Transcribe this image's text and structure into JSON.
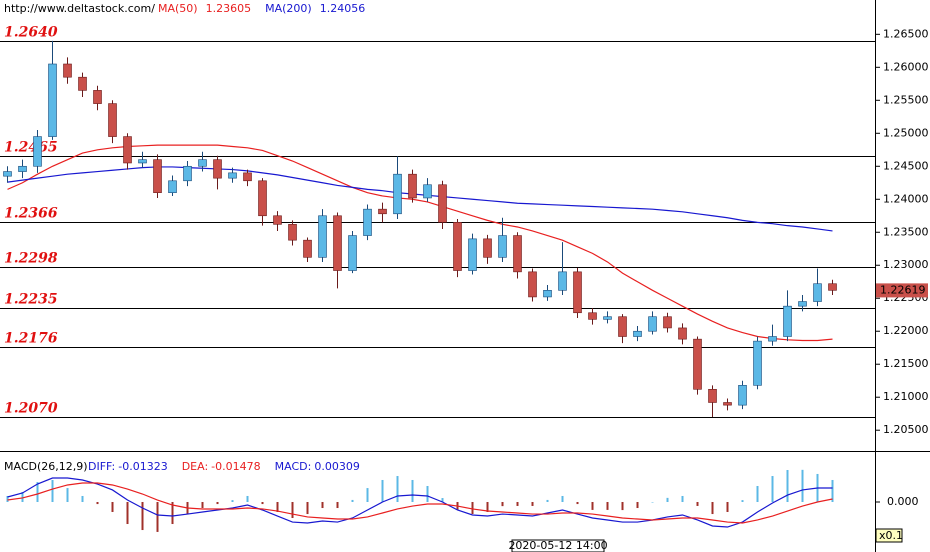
{
  "chart_data": {
    "type": "candlestick",
    "source": "http://www.deltastock.com/",
    "cursor_time": "2020-05-12 14:00",
    "up_color": "#5bb8e6",
    "down_color": "#c9504a",
    "ylim": [
      1.202,
      1.2702
    ],
    "yticks": [
      {
        "value": 1.265,
        "label": "1.26500"
      },
      {
        "value": 1.26,
        "label": "1.26000"
      },
      {
        "value": 1.255,
        "label": "1.25500"
      },
      {
        "value": 1.25,
        "label": "1.25000"
      },
      {
        "value": 1.245,
        "label": "1.24500"
      },
      {
        "value": 1.24,
        "label": "1.24000"
      },
      {
        "value": 1.235,
        "label": "1.23500"
      },
      {
        "value": 1.23,
        "label": "1.23000"
      },
      {
        "value": 1.225,
        "label": "1.22500"
      },
      {
        "value": 1.22,
        "label": "1.22000"
      },
      {
        "value": 1.215,
        "label": "1.21500"
      },
      {
        "value": 1.21,
        "label": "1.21000"
      },
      {
        "value": 1.205,
        "label": "1.20500"
      }
    ],
    "levels": [
      {
        "value": 1.264,
        "label": "1.2640"
      },
      {
        "value": 1.2465,
        "label": "1.2465"
      },
      {
        "value": 1.2366,
        "label": "1.2366"
      },
      {
        "value": 1.2298,
        "label": "1.2298"
      },
      {
        "value": 1.2235,
        "label": "1.2235"
      },
      {
        "value": 1.2176,
        "label": "1.2176"
      },
      {
        "value": 1.207,
        "label": "1.2070"
      }
    ],
    "last_price": 1.22619,
    "open": [
      1.2435,
      1.2442,
      1.245,
      1.2495,
      1.2605,
      1.2585,
      1.2565,
      1.2545,
      1.2495,
      1.2455,
      1.246,
      1.241,
      1.2428,
      1.245,
      1.246,
      1.2432,
      1.244,
      1.2428,
      1.2375,
      1.2362,
      1.2338,
      1.2312,
      1.2375,
      1.2292,
      1.2345,
      1.2385,
      1.2378,
      1.2438,
      1.2402,
      1.2422,
      1.2365,
      1.2292,
      1.234,
      1.2312,
      1.2345,
      1.229,
      1.2252,
      1.2262,
      1.229,
      1.2228,
      1.2218,
      1.2222,
      1.2192,
      1.22,
      1.2222,
      1.2205,
      1.2188,
      1.2112,
      1.2092,
      1.2088,
      1.2118,
      1.2185,
      1.2192,
      1.2238,
      1.2245,
      1.2272
    ],
    "high": [
      1.245,
      1.246,
      1.2505,
      1.264,
      1.2615,
      1.2592,
      1.2572,
      1.255,
      1.25,
      1.2472,
      1.2468,
      1.2436,
      1.2458,
      1.2472,
      1.2466,
      1.2448,
      1.2445,
      1.2432,
      1.2382,
      1.2368,
      1.2342,
      1.2385,
      1.238,
      1.2352,
      1.2392,
      1.2395,
      1.2465,
      1.2445,
      1.2432,
      1.2428,
      1.237,
      1.2348,
      1.2346,
      1.2372,
      1.235,
      1.2295,
      1.227,
      1.2335,
      1.2296,
      1.2235,
      1.223,
      1.2226,
      1.2208,
      1.223,
      1.2228,
      1.2212,
      1.2192,
      1.2118,
      1.2098,
      1.2125,
      1.2192,
      1.221,
      1.2262,
      1.2255,
      1.2295,
      1.2278
    ],
    "low": [
      1.2425,
      1.2432,
      1.244,
      1.249,
      1.2575,
      1.2555,
      1.2535,
      1.2485,
      1.2445,
      1.2448,
      1.2402,
      1.2405,
      1.242,
      1.2442,
      1.2415,
      1.2425,
      1.242,
      1.236,
      1.2352,
      1.233,
      1.2305,
      1.2305,
      1.2265,
      1.2288,
      1.2338,
      1.2365,
      1.237,
      1.2395,
      1.2396,
      1.2355,
      1.2282,
      1.2286,
      1.2302,
      1.2305,
      1.228,
      1.2245,
      1.2246,
      1.2255,
      1.222,
      1.221,
      1.2212,
      1.2182,
      1.2185,
      1.2195,
      1.2198,
      1.218,
      1.2104,
      1.207,
      1.208,
      1.2082,
      1.2112,
      1.2178,
      1.2185,
      1.223,
      1.2238,
      1.2255
    ],
    "close": [
      1.2442,
      1.245,
      1.2495,
      1.2605,
      1.2585,
      1.2565,
      1.2545,
      1.2495,
      1.2455,
      1.246,
      1.241,
      1.2428,
      1.245,
      1.246,
      1.2432,
      1.244,
      1.2428,
      1.2375,
      1.2362,
      1.2338,
      1.2312,
      1.2375,
      1.2292,
      1.2345,
      1.2385,
      1.2378,
      1.2438,
      1.2402,
      1.2422,
      1.2365,
      1.2292,
      1.234,
      1.2312,
      1.2345,
      1.229,
      1.2252,
      1.2262,
      1.229,
      1.2228,
      1.2218,
      1.2222,
      1.2192,
      1.22,
      1.2222,
      1.2205,
      1.2188,
      1.2112,
      1.2092,
      1.2088,
      1.2118,
      1.2185,
      1.2192,
      1.2238,
      1.2245,
      1.2272,
      1.2262
    ],
    "series": [
      {
        "name": "MA(50)",
        "value": 1.23605,
        "color": "#e82020",
        "values": [
          1.2415,
          1.2425,
          1.2438,
          1.245,
          1.246,
          1.247,
          1.2475,
          1.2478,
          1.248,
          1.2481,
          1.2482,
          1.2482,
          1.2482,
          1.2482,
          1.2482,
          1.248,
          1.2478,
          1.2474,
          1.2466,
          1.2458,
          1.2448,
          1.2438,
          1.2428,
          1.2418,
          1.241,
          1.2405,
          1.2402,
          1.24,
          1.2396,
          1.2389,
          1.2382,
          1.2375,
          1.2368,
          1.2362,
          1.2358,
          1.2352,
          1.2345,
          1.2338,
          1.2328,
          1.2318,
          1.2305,
          1.2288,
          1.2275,
          1.2262,
          1.225,
          1.2238,
          1.2226,
          1.2215,
          1.2205,
          1.2198,
          1.2192,
          1.2189,
          1.2187,
          1.2186,
          1.2186,
          1.2188
        ]
      },
      {
        "name": "MA(200)",
        "value": 1.24056,
        "color": "#1818d0",
        "values": [
          1.2426,
          1.2429,
          1.2432,
          1.2435,
          1.2438,
          1.244,
          1.2442,
          1.2444,
          1.2446,
          1.2448,
          1.2449,
          1.2449,
          1.2448,
          1.2447,
          1.2446,
          1.2445,
          1.2443,
          1.244,
          1.2437,
          1.2433,
          1.2429,
          1.2425,
          1.2421,
          1.2418,
          1.2415,
          1.2413,
          1.241,
          1.2408,
          1.2406,
          1.2404,
          1.2402,
          1.24,
          1.2398,
          1.2396,
          1.2394,
          1.2393,
          1.2392,
          1.2391,
          1.239,
          1.2389,
          1.2388,
          1.2387,
          1.2386,
          1.2385,
          1.2383,
          1.2381,
          1.2378,
          1.2375,
          1.2372,
          1.2368,
          1.2365,
          1.2363,
          1.236,
          1.2358,
          1.2355,
          1.2352
        ]
      }
    ],
    "macd": {
      "title": "MACD(26,12,9)",
      "scale_note": "x0.1",
      "ylim": [
        -0.05,
        0.05
      ],
      "yticks": [
        {
          "value": 0,
          "label": "0.000"
        }
      ],
      "hist_up_color": "#5bb8e6",
      "hist_down_color": "#a0302a",
      "series": [
        {
          "name": "DIFF:",
          "value": -0.01323,
          "color": "#1818d0",
          "values": [
            0.0058,
            0.0105,
            0.0209,
            0.0279,
            0.0279,
            0.0256,
            0.0209,
            0.014,
            0.0023,
            -0.007,
            -0.0151,
            -0.0163,
            -0.014,
            -0.0116,
            -0.0093,
            -0.007,
            -0.0035,
            -0.0093,
            -0.0163,
            -0.0233,
            -0.0244,
            -0.0221,
            -0.0233,
            -0.0186,
            -0.0093,
            0.0,
            0.007,
            0.0081,
            0.007,
            0.0,
            -0.0093,
            -0.0151,
            -0.0163,
            -0.014,
            -0.0151,
            -0.0163,
            -0.0128,
            -0.0093,
            -0.014,
            -0.0186,
            -0.0209,
            -0.0233,
            -0.0233,
            -0.0209,
            -0.0174,
            -0.0151,
            -0.0209,
            -0.0279,
            -0.0291,
            -0.0233,
            -0.0116,
            -0.0012,
            0.0081,
            0.014,
            0.0163,
            0.0163
          ]
        },
        {
          "name": "DEA:",
          "value": -0.01478,
          "color": "#e82020",
          "values": [
            0.0023,
            0.0047,
            0.0093,
            0.0151,
            0.0198,
            0.0221,
            0.0221,
            0.0198,
            0.0151,
            0.0093,
            0.0023,
            -0.0035,
            -0.007,
            -0.0081,
            -0.0081,
            -0.0081,
            -0.007,
            -0.0081,
            -0.0105,
            -0.014,
            -0.0174,
            -0.0186,
            -0.0198,
            -0.0198,
            -0.0174,
            -0.0128,
            -0.0081,
            -0.0047,
            -0.0023,
            -0.0023,
            -0.0047,
            -0.0081,
            -0.0105,
            -0.0116,
            -0.0128,
            -0.014,
            -0.014,
            -0.0128,
            -0.0128,
            -0.014,
            -0.0163,
            -0.0186,
            -0.0198,
            -0.0209,
            -0.0198,
            -0.0186,
            -0.0186,
            -0.0209,
            -0.0233,
            -0.0244,
            -0.0209,
            -0.0163,
            -0.0105,
            -0.0047,
            0.0,
            0.0035
          ]
        },
        {
          "name": "MACD:",
          "value": 0.00309,
          "color": "#1818d0",
          "values": [
            0.007,
            0.0116,
            0.0232,
            0.0256,
            0.0162,
            0.007,
            -0.0024,
            -0.0116,
            -0.0256,
            -0.0326,
            -0.0348,
            -0.0256,
            -0.014,
            -0.007,
            -0.0024,
            0.0022,
            0.007,
            -0.0024,
            -0.0116,
            -0.0186,
            -0.014,
            -0.007,
            -0.007,
            0.0024,
            0.0162,
            0.0256,
            0.0302,
            0.0256,
            0.0186,
            0.0046,
            -0.0092,
            -0.014,
            -0.0116,
            -0.0048,
            -0.0046,
            -0.0046,
            0.0024,
            0.007,
            -0.0024,
            -0.0092,
            -0.0092,
            -0.0094,
            -0.007,
            0.0,
            0.0048,
            0.007,
            -0.0046,
            -0.014,
            -0.0116,
            0.0022,
            0.0186,
            0.0302,
            0.0372,
            0.0374,
            0.0326,
            0.0256
          ]
        }
      ]
    }
  }
}
